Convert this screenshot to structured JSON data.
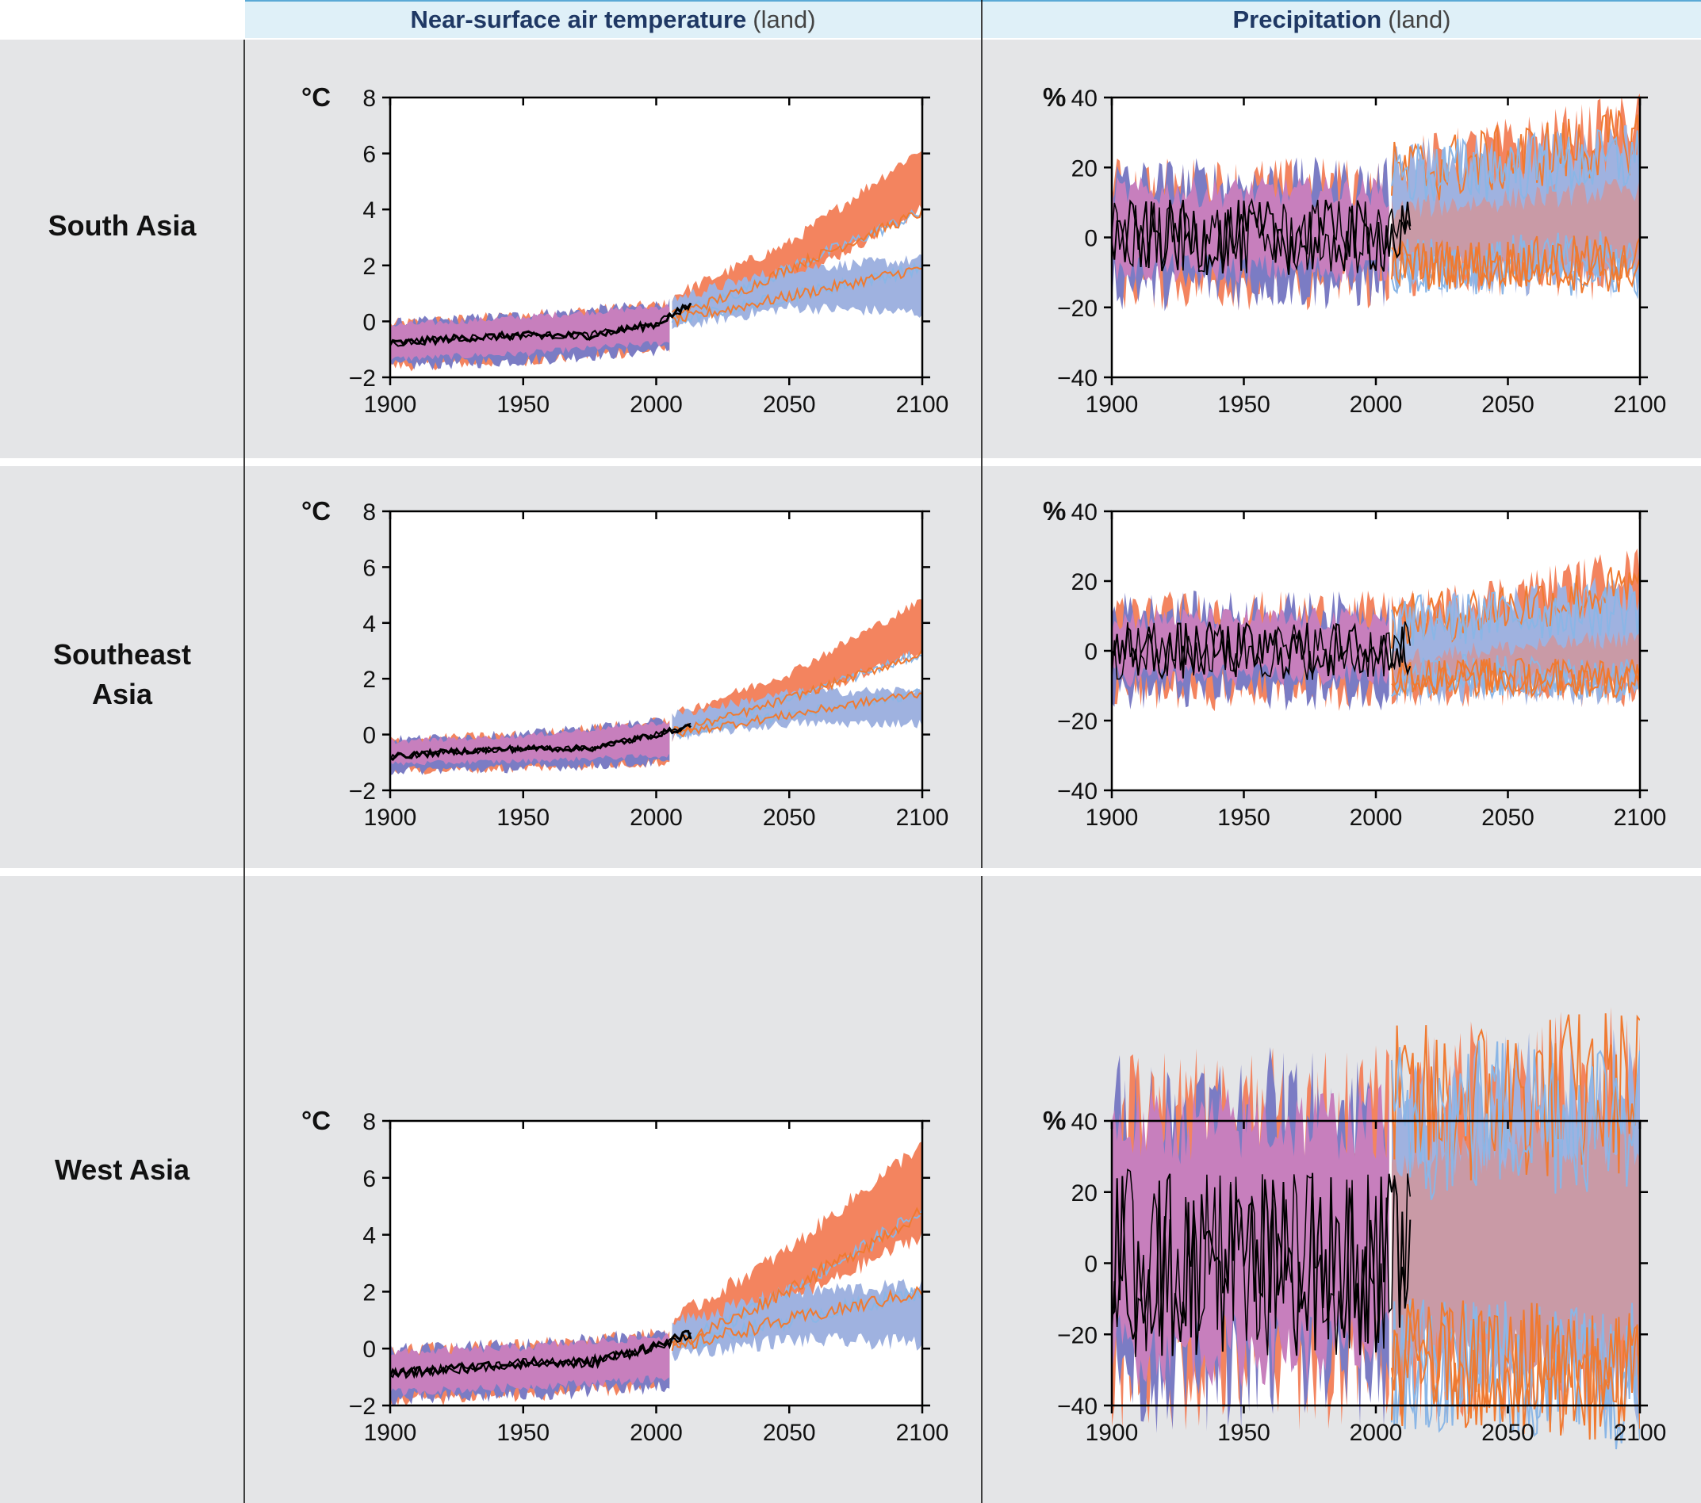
{
  "columns": [
    {
      "title_bold": "Near-surface air temperature",
      "title_light": "(land)"
    },
    {
      "title_bold": "Precipitation",
      "title_light": "(land)"
    }
  ],
  "rows": [
    {
      "label_lines": [
        "South Asia"
      ]
    },
    {
      "label_lines": [
        "Southeast",
        "Asia"
      ]
    },
    {
      "label_lines": [
        "West Asia"
      ]
    }
  ],
  "colors": {
    "historical_band": "#7b7cc4",
    "rcp85_band": "#f3845f",
    "rcp26_band": "#9fb2e0",
    "overlap_band": "#c77fbd",
    "rcp85_line": "#f07a30",
    "rcp26_line": "#8ab6e6",
    "observed": "#000000",
    "panel_background": "#e4e5e7",
    "header_background": "#dff0f8"
  },
  "chart_data": [
    {
      "type": "area",
      "row": "South Asia",
      "variable": "Near-surface air temperature (land)",
      "ylabel": "°C",
      "xlim": [
        1900,
        2100
      ],
      "ylim": [
        -2,
        8
      ],
      "xticks": [
        1900,
        1950,
        2000,
        2050,
        2100
      ],
      "yticks": [
        -2,
        0,
        2,
        4,
        6,
        8
      ],
      "series": [
        {
          "x": [
            1900,
            1950,
            2005
          ],
          "lower": [
            -1.6,
            -1.4,
            -1.0
          ],
          "upper": [
            -0.1,
            0.2,
            0.6
          ]
        },
        {
          "x": [
            2006,
            2050,
            2100
          ],
          "lower": [
            -0.1,
            1.4,
            4.0
          ],
          "upper": [
            0.9,
            2.8,
            6.2
          ]
        },
        {
          "x": [
            2006,
            2050,
            2100
          ],
          "lower": [
            -0.2,
            0.5,
            0.3
          ],
          "upper": [
            0.8,
            1.9,
            2.2
          ]
        },
        {
          "x": [
            2006,
            2030,
            2050,
            2075,
            2100
          ],
          "y": [
            0.2,
            1.0,
            1.9,
            2.9,
            3.9
          ]
        },
        {
          "x": [
            2006,
            2030,
            2050,
            2075,
            2100
          ],
          "y": [
            0.0,
            0.5,
            0.9,
            1.4,
            1.9
          ]
        },
        {
          "x": [
            1900,
            1925,
            1950,
            1975,
            2000,
            2013
          ],
          "y": [
            -0.8,
            -0.6,
            -0.5,
            -0.5,
            -0.1,
            0.6
          ]
        }
      ]
    },
    {
      "type": "area",
      "row": "South Asia",
      "variable": "Precipitation (land)",
      "ylabel": "%",
      "xlim": [
        1900,
        2100
      ],
      "ylim": [
        -40,
        40
      ],
      "xticks": [
        1900,
        1950,
        2000,
        2050,
        2100
      ],
      "yticks": [
        -40,
        -20,
        0,
        20,
        40
      ],
      "series": [
        {
          "x": [
            1900,
            2005
          ],
          "lower": [
            -13,
            -13
          ],
          "upper": [
            15,
            15
          ]
        },
        {
          "x": [
            2006,
            2100
          ],
          "lower": [
            -10,
            -10
          ],
          "upper": [
            20,
            34
          ]
        },
        {
          "x": [
            2006,
            2100
          ],
          "lower": [
            -10,
            -10
          ],
          "upper": [
            20,
            26
          ]
        },
        {
          "x": [
            2006,
            2100
          ],
          "y": [
            -8,
            -6
          ]
        },
        {
          "x": [
            2006,
            2100
          ],
          "y": [
            -8,
            -9
          ]
        },
        {
          "x": [
            1900,
            2013
          ],
          "y": [
            0,
            0
          ]
        }
      ]
    },
    {
      "type": "area",
      "row": "Southeast Asia",
      "variable": "Near-surface air temperature (land)",
      "ylabel": "°C",
      "xlim": [
        1900,
        2100
      ],
      "ylim": [
        -2,
        8
      ],
      "xticks": [
        1900,
        1950,
        2000,
        2050,
        2100
      ],
      "yticks": [
        -2,
        0,
        2,
        4,
        6,
        8
      ],
      "series": [
        {
          "x": [
            1900,
            1950,
            2005
          ],
          "lower": [
            -1.3,
            -1.2,
            -1.0
          ],
          "upper": [
            -0.2,
            0.0,
            0.5
          ]
        },
        {
          "x": [
            2006,
            2050,
            2100
          ],
          "lower": [
            -0.1,
            1.1,
            3.0
          ],
          "upper": [
            0.7,
            2.2,
            4.8
          ]
        },
        {
          "x": [
            2006,
            2050,
            2100
          ],
          "lower": [
            -0.1,
            0.4,
            0.4
          ],
          "upper": [
            0.7,
            1.5,
            1.6
          ]
        },
        {
          "x": [
            2006,
            2030,
            2050,
            2075,
            2100
          ],
          "y": [
            0.1,
            0.7,
            1.3,
            2.1,
            2.9
          ]
        },
        {
          "x": [
            2006,
            2030,
            2050,
            2075,
            2100
          ],
          "y": [
            0.0,
            0.4,
            0.7,
            1.1,
            1.5
          ]
        },
        {
          "x": [
            1900,
            1925,
            1950,
            1975,
            2000,
            2013
          ],
          "y": [
            -0.8,
            -0.6,
            -0.5,
            -0.5,
            0.0,
            0.3
          ]
        }
      ]
    },
    {
      "type": "area",
      "row": "Southeast Asia",
      "variable": "Precipitation (land)",
      "ylabel": "%",
      "xlim": [
        1900,
        2100
      ],
      "ylim": [
        -40,
        40
      ],
      "xticks": [
        1900,
        1950,
        2000,
        2050,
        2100
      ],
      "yticks": [
        -40,
        -20,
        0,
        20,
        40
      ],
      "series": [
        {
          "x": [
            1900,
            2005
          ],
          "lower": [
            -11,
            -11
          ],
          "upper": [
            11,
            11
          ]
        },
        {
          "x": [
            2006,
            2100
          ],
          "lower": [
            -10,
            -10
          ],
          "upper": [
            10,
            24
          ]
        },
        {
          "x": [
            2006,
            2100
          ],
          "lower": [
            -10,
            -10
          ],
          "upper": [
            10,
            16
          ]
        },
        {
          "x": [
            2006,
            2100
          ],
          "y": [
            -7,
            -8
          ]
        },
        {
          "x": [
            2006,
            2100
          ],
          "y": [
            -7,
            -8
          ]
        },
        {
          "x": [
            1900,
            2013
          ],
          "y": [
            0,
            0
          ]
        }
      ]
    },
    {
      "type": "area",
      "row": "West Asia",
      "variable": "Near-surface air temperature (land)",
      "ylabel": "°C",
      "xlim": [
        1900,
        2100
      ],
      "ylim": [
        -2,
        8
      ],
      "xticks": [
        1900,
        1950,
        2000,
        2050,
        2100
      ],
      "yticks": [
        -2,
        0,
        2,
        4,
        6,
        8
      ],
      "series": [
        {
          "x": [
            1900,
            1950,
            2005
          ],
          "lower": [
            -1.8,
            -1.6,
            -1.3
          ],
          "upper": [
            -0.1,
            0.1,
            0.5
          ]
        },
        {
          "x": [
            2006,
            2050,
            2100
          ],
          "lower": [
            -0.1,
            1.6,
            4.0
          ],
          "upper": [
            1.0,
            3.5,
            7.2
          ]
        },
        {
          "x": [
            2006,
            2050,
            2100
          ],
          "lower": [
            -0.2,
            0.3,
            0.2
          ],
          "upper": [
            0.9,
            2.0,
            2.2
          ]
        },
        {
          "x": [
            2006,
            2030,
            2050,
            2075,
            2100
          ],
          "y": [
            0.1,
            1.1,
            2.1,
            3.4,
            4.8
          ]
        },
        {
          "x": [
            2006,
            2030,
            2050,
            2075,
            2100
          ],
          "y": [
            0.0,
            0.6,
            1.0,
            1.5,
            2.0
          ]
        },
        {
          "x": [
            1900,
            1925,
            1950,
            1975,
            2000,
            2013
          ],
          "y": [
            -0.9,
            -0.7,
            -0.5,
            -0.5,
            0.1,
            0.5
          ]
        }
      ]
    },
    {
      "type": "area",
      "row": "West Asia",
      "variable": "Precipitation (land)",
      "ylabel": "%",
      "xlim": [
        1900,
        2100
      ],
      "ylim": [
        -40,
        40
      ],
      "xticks": [
        1900,
        1950,
        2000,
        2050,
        2100
      ],
      "yticks": [
        -40,
        -20,
        0,
        20,
        40
      ],
      "series": [
        {
          "x": [
            1900,
            2005
          ],
          "lower": [
            -28,
            -28
          ],
          "upper": [
            40,
            42
          ]
        },
        {
          "x": [
            2006,
            2100
          ],
          "lower": [
            -25,
            -30
          ],
          "upper": [
            45,
            55
          ]
        },
        {
          "x": [
            2006,
            2100
          ],
          "lower": [
            -25,
            -28
          ],
          "upper": [
            42,
            48
          ]
        },
        {
          "x": [
            2006,
            2100
          ],
          "y": [
            -28,
            -33
          ]
        },
        {
          "x": [
            2006,
            2100
          ],
          "y": [
            -27,
            -30
          ]
        },
        {
          "x": [
            1900,
            2013
          ],
          "y": [
            0,
            0
          ]
        }
      ]
    }
  ]
}
